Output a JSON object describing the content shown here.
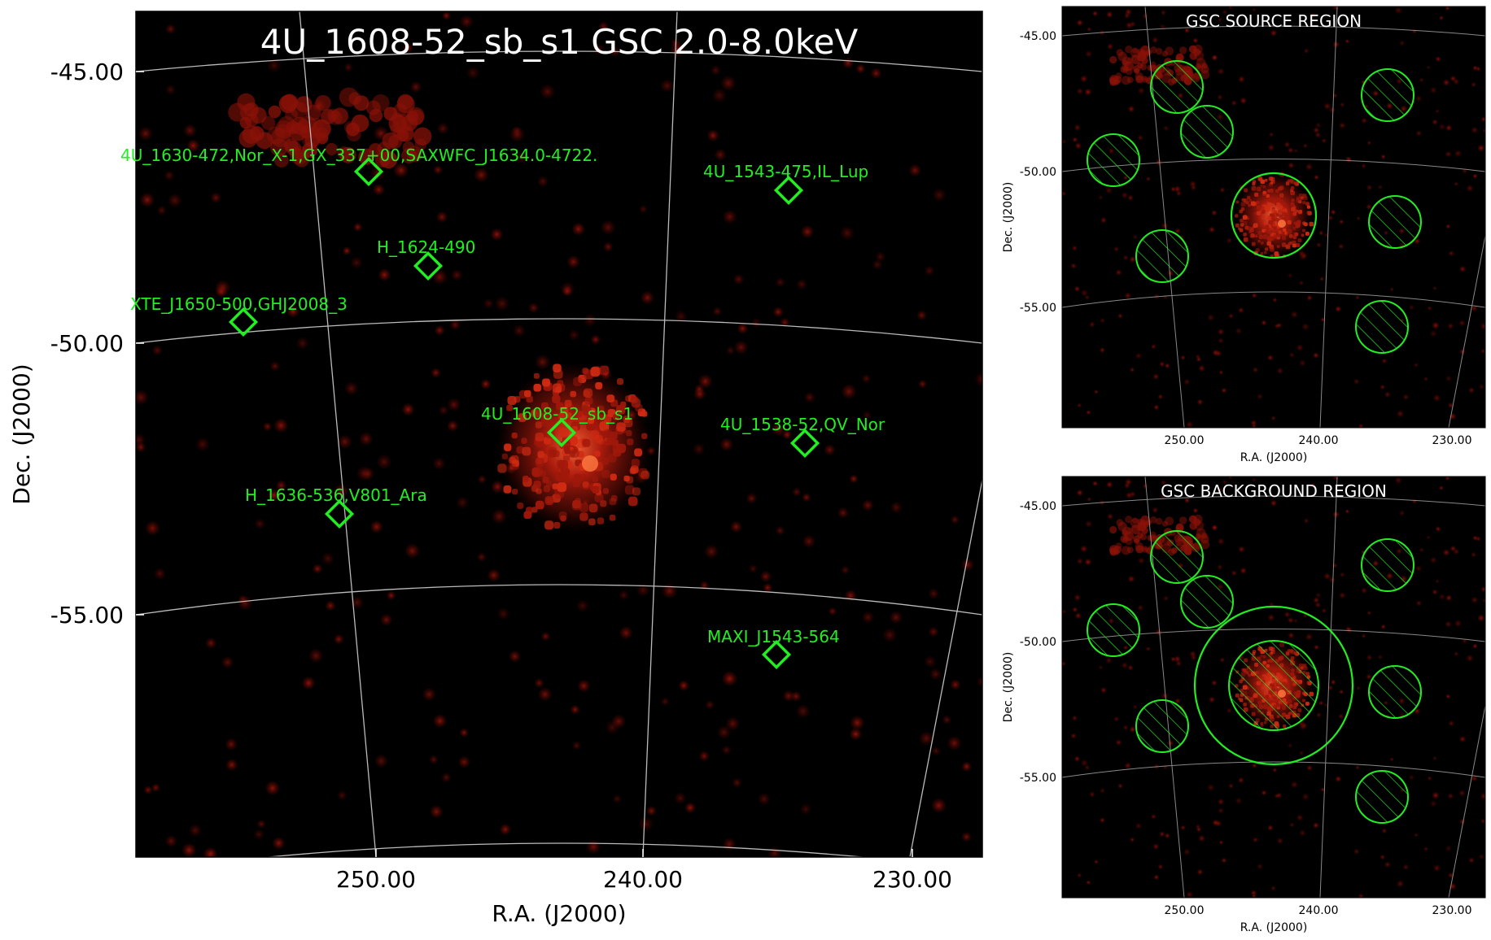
{
  "main_panel": {
    "title": "4U_1608-52_sb_s1 GSC 2.0-8.0keV",
    "xlabel": "R.A. (J2000)",
    "ylabel": "Dec. (J2000)",
    "x_ticks": [
      "250.00",
      "240.00",
      "230.00"
    ],
    "y_ticks": [
      "-45.00",
      "-50.00",
      "-55.00"
    ],
    "sources": [
      {
        "name": "4U_1630-472,Nor_X-1,GX_337+00,SAXWFC_J1634.0-4722."
      },
      {
        "name": "4U_1543-475,IL_Lup"
      },
      {
        "name": "H_1624-490"
      },
      {
        "name": "XTE_J1650-500,GHJ2008_3"
      },
      {
        "name": "4U_1608-52_sb_s1"
      },
      {
        "name": "4U_1538-52,QV_Nor"
      },
      {
        "name": "H_1636-536,V801_Ara"
      },
      {
        "name": "MAXI_J1543-564"
      }
    ]
  },
  "source_panel": {
    "title": "GSC SOURCE REGION",
    "xlabel": "R.A. (J2000)",
    "ylabel": "Dec. (J2000)",
    "x_ticks": [
      "250.00",
      "240.00",
      "230.00"
    ],
    "y_ticks": [
      "-45.00",
      "-50.00",
      "-55.00"
    ]
  },
  "background_panel": {
    "title": "GSC BACKGROUND REGION",
    "xlabel": "R.A. (J2000)",
    "ylabel": "Dec. (J2000)",
    "x_ticks": [
      "250.00",
      "240.00",
      "230.00"
    ],
    "y_ticks": [
      "-45.00",
      "-50.00",
      "-55.00"
    ]
  },
  "colors": {
    "background": "#000000",
    "emission": "#c81e10",
    "marker": "#22ee22",
    "grid": "#bbbbbb"
  }
}
